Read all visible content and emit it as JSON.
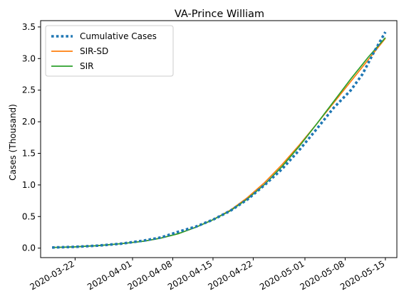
{
  "chart_data": {
    "type": "line",
    "title": "VA-Prince William",
    "xlabel": "",
    "ylabel": "Cases (Thousand)",
    "x_range": [
      "2020-03-16",
      "2020-05-17"
    ],
    "ylim": [
      -0.15,
      3.6
    ],
    "x_ticks": [
      "2020-03-22",
      "2020-04-01",
      "2020-04-08",
      "2020-04-15",
      "2020-04-22",
      "2020-05-01",
      "2020-05-08",
      "2020-05-15"
    ],
    "y_ticks": [
      0.0,
      0.5,
      1.0,
      1.5,
      2.0,
      2.5,
      3.0,
      3.5
    ],
    "y_tick_labels": [
      "0.0",
      "0.5",
      "1.0",
      "1.5",
      "2.0",
      "2.5",
      "3.0",
      "3.5"
    ],
    "grid": false,
    "legend_position": "top-left",
    "series": [
      {
        "name": "Cumulative Cases",
        "style": "dotted",
        "color": "#1f77b4",
        "points": [
          [
            "2020-03-18",
            0.01
          ],
          [
            "2020-03-22",
            0.02
          ],
          [
            "2020-03-26",
            0.04
          ],
          [
            "2020-03-30",
            0.07
          ],
          [
            "2020-04-03",
            0.12
          ],
          [
            "2020-04-06",
            0.17
          ],
          [
            "2020-04-09",
            0.26
          ],
          [
            "2020-04-12",
            0.34
          ],
          [
            "2020-04-15",
            0.45
          ],
          [
            "2020-04-18",
            0.59
          ],
          [
            "2020-04-21",
            0.77
          ],
          [
            "2020-04-24",
            1.0
          ],
          [
            "2020-04-27",
            1.25
          ],
          [
            "2020-04-30",
            1.55
          ],
          [
            "2020-05-03",
            1.88
          ],
          [
            "2020-05-06",
            2.22
          ],
          [
            "2020-05-09",
            2.5
          ],
          [
            "2020-05-11",
            2.75
          ],
          [
            "2020-05-13",
            3.1
          ],
          [
            "2020-05-15",
            3.42
          ]
        ]
      },
      {
        "name": "SIR-SD",
        "style": "solid",
        "color": "#ff7f0e",
        "points": [
          [
            "2020-03-18",
            0.01
          ],
          [
            "2020-03-22",
            0.02
          ],
          [
            "2020-03-26",
            0.04
          ],
          [
            "2020-03-30",
            0.07
          ],
          [
            "2020-04-03",
            0.11
          ],
          [
            "2020-04-06",
            0.16
          ],
          [
            "2020-04-09",
            0.23
          ],
          [
            "2020-04-12",
            0.33
          ],
          [
            "2020-04-15",
            0.45
          ],
          [
            "2020-04-18",
            0.6
          ],
          [
            "2020-04-21",
            0.8
          ],
          [
            "2020-04-24",
            1.04
          ],
          [
            "2020-04-27",
            1.32
          ],
          [
            "2020-04-30",
            1.63
          ],
          [
            "2020-05-03",
            1.96
          ],
          [
            "2020-05-06",
            2.3
          ],
          [
            "2020-05-09",
            2.64
          ],
          [
            "2020-05-12",
            2.98
          ],
          [
            "2020-05-15",
            3.32
          ]
        ]
      },
      {
        "name": "SIR",
        "style": "solid",
        "color": "#2ca02c",
        "points": [
          [
            "2020-03-18",
            0.01
          ],
          [
            "2020-03-22",
            0.02
          ],
          [
            "2020-03-26",
            0.04
          ],
          [
            "2020-03-30",
            0.07
          ],
          [
            "2020-04-03",
            0.11
          ],
          [
            "2020-04-06",
            0.16
          ],
          [
            "2020-04-09",
            0.23
          ],
          [
            "2020-04-12",
            0.33
          ],
          [
            "2020-04-15",
            0.45
          ],
          [
            "2020-04-18",
            0.59
          ],
          [
            "2020-04-21",
            0.78
          ],
          [
            "2020-04-24",
            1.01
          ],
          [
            "2020-04-27",
            1.29
          ],
          [
            "2020-04-30",
            1.61
          ],
          [
            "2020-05-03",
            1.96
          ],
          [
            "2020-05-06",
            2.32
          ],
          [
            "2020-05-09",
            2.68
          ],
          [
            "2020-05-12",
            3.02
          ],
          [
            "2020-05-15",
            3.33
          ]
        ]
      }
    ]
  }
}
